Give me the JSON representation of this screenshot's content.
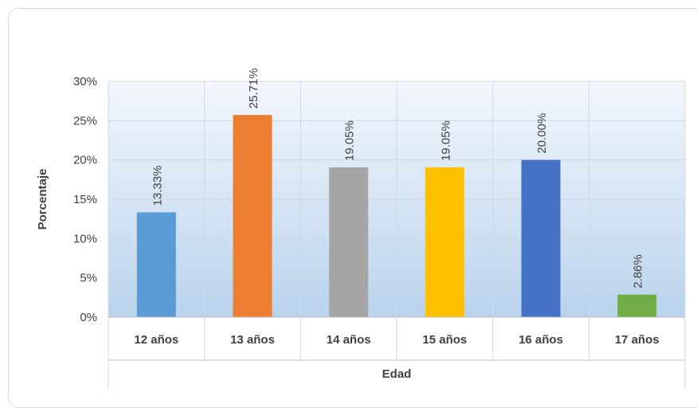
{
  "chart_data": {
    "type": "bar",
    "categories": [
      "12 años",
      "13 años",
      "14 años",
      "15 años",
      "16 años",
      "17 años"
    ],
    "values": [
      13.33,
      25.71,
      19.05,
      19.05,
      20.0,
      2.86
    ],
    "data_labels": [
      "13.33%",
      "25.71%",
      "19.05%",
      "19.05%",
      "20.00%",
      "2.86%"
    ],
    "bar_colors": [
      "#5b9bd5",
      "#ed7d31",
      "#a5a5a5",
      "#ffc000",
      "#4472c4",
      "#70ad47"
    ],
    "title": "",
    "xlabel": "Edad",
    "ylabel": "Porcentaje",
    "ylim": [
      0,
      30
    ],
    "yticks": [
      "0%",
      "5%",
      "10%",
      "15%",
      "20%",
      "25%",
      "30%"
    ],
    "grid": true,
    "legend": "none"
  }
}
